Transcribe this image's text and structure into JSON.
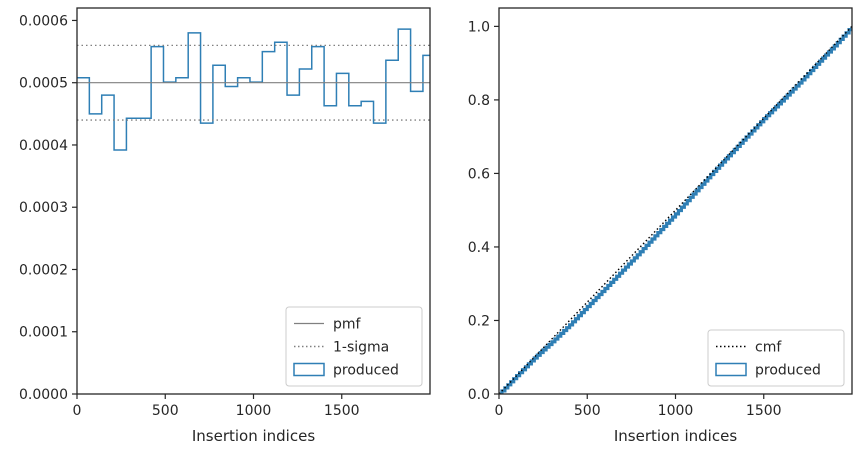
{
  "chart_data": [
    {
      "type": "step",
      "xlabel": "Insertion indices",
      "ylabel": "",
      "xlim": [
        0,
        2000
      ],
      "ylim": [
        0,
        0.00062
      ],
      "xticks": [
        0,
        500,
        1000,
        1500
      ],
      "xtick_labels": [
        "0",
        "500",
        "1000",
        "1500"
      ],
      "yticks": [
        0,
        0.0001,
        0.0002,
        0.0003,
        0.0004,
        0.0005,
        0.0006
      ],
      "ytick_labels": [
        "0.0000",
        "0.0001",
        "0.0002",
        "0.0003",
        "0.0004",
        "0.0005",
        "0.0006"
      ],
      "bin_width": 70,
      "series": [
        {
          "name": "produced",
          "style": "step",
          "color": "#2f7fb5",
          "bin_edges": [
            0,
            70,
            140,
            210,
            280,
            350,
            420,
            490,
            560,
            630,
            700,
            770,
            840,
            910,
            980,
            1050,
            1120,
            1190,
            1260,
            1330,
            1400,
            1470,
            1540,
            1610,
            1680,
            1750,
            1820,
            1890,
            1960,
            2000
          ],
          "values": [
            0.000508,
            0.00045,
            0.00048,
            0.000392,
            0.000443,
            0.000443,
            0.000558,
            0.000501,
            0.000508,
            0.00058,
            0.000435,
            0.000528,
            0.000494,
            0.000508,
            0.000501,
            0.00055,
            0.000565,
            0.00048,
            0.000522,
            0.000558,
            0.000463,
            0.000515,
            0.000463,
            0.00047,
            0.000435,
            0.000536,
            0.000586,
            0.000486,
            0.000544
          ]
        },
        {
          "name": "pmf",
          "style": "hline",
          "color": "#808080",
          "y": 0.0005
        },
        {
          "name": "1-sigma",
          "style": "hline-dotted",
          "color": "#808080",
          "y": [
            0.00044,
            0.00056
          ]
        }
      ],
      "legend": {
        "position": "lower-right",
        "entries": [
          {
            "label": "pmf",
            "marker": "solid-line",
            "color": "#808080"
          },
          {
            "label": "1-sigma",
            "marker": "dotted-line",
            "color": "#808080"
          },
          {
            "label": "produced",
            "marker": "box",
            "color": "#2f7fb5"
          }
        ]
      }
    },
    {
      "type": "line",
      "xlabel": "Insertion indices",
      "ylabel": "",
      "xlim": [
        0,
        2000
      ],
      "ylim": [
        0,
        1.05
      ],
      "xticks": [
        0,
        500,
        1000,
        1500
      ],
      "xtick_labels": [
        "0",
        "500",
        "1000",
        "1500"
      ],
      "yticks": [
        0,
        0.2,
        0.4,
        0.6,
        0.8,
        1.0
      ],
      "ytick_labels": [
        "0.0",
        "0.2",
        "0.4",
        "0.6",
        "0.8",
        "1.0"
      ],
      "series": [
        {
          "name": "produced",
          "style": "step-cumulative",
          "color": "#2f7fb5",
          "x": [
            0,
            100,
            200,
            300,
            400,
            500,
            600,
            700,
            800,
            900,
            1000,
            1100,
            1200,
            1300,
            1400,
            1500,
            1600,
            1700,
            1800,
            1900,
            2000
          ],
          "y": [
            0,
            0.05,
            0.098,
            0.142,
            0.188,
            0.238,
            0.287,
            0.337,
            0.387,
            0.439,
            0.49,
            0.544,
            0.597,
            0.648,
            0.699,
            0.749,
            0.797,
            0.846,
            0.897,
            0.947,
            1.0
          ]
        },
        {
          "name": "cmf",
          "style": "dotted",
          "color": "#000000",
          "x": [
            0,
            2000
          ],
          "y": [
            0,
            1.0
          ]
        }
      ],
      "legend": {
        "position": "lower-right",
        "entries": [
          {
            "label": "cmf",
            "marker": "dotted-line",
            "color": "#000000"
          },
          {
            "label": "produced",
            "marker": "box",
            "color": "#2f7fb5"
          }
        ]
      }
    }
  ]
}
